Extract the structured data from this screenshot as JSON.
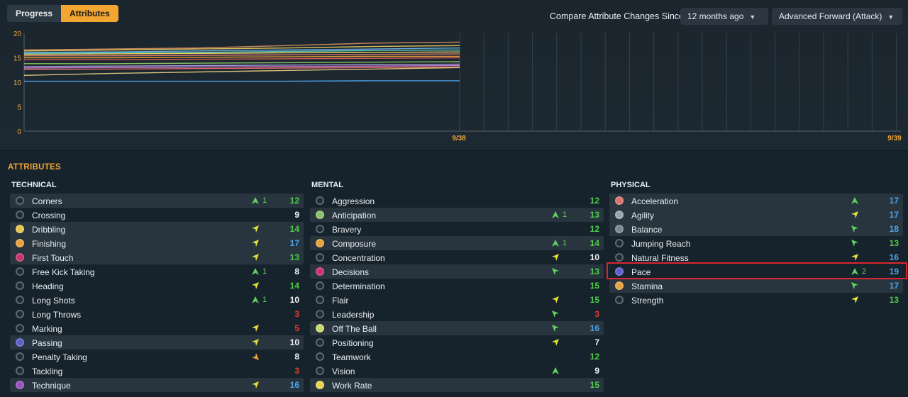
{
  "tabs": [
    {
      "label": "Progress",
      "active": false
    },
    {
      "label": "Attributes",
      "active": true
    }
  ],
  "compare": {
    "label": "Compare Attribute Changes Since",
    "period": "12 months ago",
    "role": "Advanced Forward (Attack)"
  },
  "chart_data": {
    "type": "line",
    "ylim": [
      0,
      20
    ],
    "y_ticks": [
      "20",
      "15",
      "10",
      "5",
      "0"
    ],
    "x_labels": [
      "9/38",
      "9/39"
    ],
    "grid": "vertical lines",
    "series": [
      {
        "color": "#c8865a",
        "values": [
          16.6,
          16.8,
          17.0,
          17.5,
          18.0,
          18.2
        ]
      },
      {
        "color": "#d7c060",
        "values": [
          16.4,
          16.6,
          16.8,
          17.0,
          17.3,
          17.5
        ]
      },
      {
        "color": "#6aa7d8",
        "values": [
          16.1,
          16.2,
          16.4,
          16.6,
          16.8,
          17.0
        ]
      },
      {
        "color": "#5cc7c7",
        "values": [
          15.9,
          16.0,
          16.1,
          16.3,
          16.5,
          16.6
        ]
      },
      {
        "color": "#e6d55e",
        "values": [
          15.7,
          15.8,
          15.9,
          16.0,
          16.1,
          16.2
        ]
      },
      {
        "color": "#d87a7a",
        "values": [
          15.4,
          15.4,
          15.5,
          15.6,
          15.7,
          15.8
        ]
      },
      {
        "color": "#e2a23a",
        "values": [
          15.0,
          15.0,
          15.1,
          15.2,
          15.3,
          15.3
        ]
      },
      {
        "color": "#d65a5a",
        "values": [
          14.6,
          14.6,
          14.7,
          14.8,
          14.9,
          15.0
        ]
      },
      {
        "color": "#8bbf63",
        "values": [
          13.8,
          13.8,
          13.9,
          14.0,
          14.1,
          14.2
        ]
      },
      {
        "color": "#a59bd8",
        "values": [
          13.2,
          13.3,
          13.4,
          13.5,
          13.6,
          13.7
        ]
      },
      {
        "color": "#c77dcf",
        "values": [
          12.9,
          13.0,
          13.1,
          13.2,
          13.3,
          13.4
        ]
      },
      {
        "color": "#e26a6a",
        "values": [
          12.6,
          12.7,
          12.8,
          12.9,
          13.0,
          13.1
        ]
      },
      {
        "color": "#d8c07a",
        "values": [
          11.4,
          11.8,
          12.1,
          12.4,
          12.7,
          13.0
        ]
      },
      {
        "color": "#4da3ea",
        "values": [
          10.2,
          10.2,
          10.2,
          10.2,
          10.3,
          10.3
        ]
      }
    ]
  },
  "attributes_title": "ATTRIBUTES",
  "columns": [
    {
      "title": "TECHNICAL",
      "rows": [
        {
          "name": "Corners",
          "trend": "up",
          "change": "1",
          "value": "12",
          "vcolor": "green",
          "dot": "",
          "shaded": true
        },
        {
          "name": "Crossing",
          "trend": "",
          "change": "",
          "value": "9",
          "vcolor": "white",
          "dot": "",
          "shaded": false
        },
        {
          "name": "Dribbling",
          "trend": "up-right",
          "change": "",
          "value": "14",
          "vcolor": "green",
          "dot": "#e8c44b",
          "shaded": true
        },
        {
          "name": "Finishing",
          "trend": "up-right",
          "change": "",
          "value": "17",
          "vcolor": "blue",
          "dot": "#e8a23a",
          "shaded": true
        },
        {
          "name": "First Touch",
          "trend": "up-right",
          "change": "",
          "value": "13",
          "vcolor": "green",
          "dot": "#c9326a",
          "shaded": true
        },
        {
          "name": "Free Kick Taking",
          "trend": "up",
          "change": "1",
          "value": "8",
          "vcolor": "white",
          "dot": "",
          "shaded": false
        },
        {
          "name": "Heading",
          "trend": "up-right",
          "change": "",
          "value": "14",
          "vcolor": "green",
          "dot": "",
          "shaded": false
        },
        {
          "name": "Long Shots",
          "trend": "up",
          "change": "1",
          "value": "10",
          "vcolor": "white",
          "dot": "",
          "shaded": false
        },
        {
          "name": "Long Throws",
          "trend": "",
          "change": "",
          "value": "3",
          "vcolor": "red",
          "dot": "",
          "shaded": false
        },
        {
          "name": "Marking",
          "trend": "up-right",
          "change": "",
          "value": "5",
          "vcolor": "red",
          "dot": "",
          "shaded": false
        },
        {
          "name": "Passing",
          "trend": "up-right",
          "change": "",
          "value": "10",
          "vcolor": "white",
          "dot": "#5a5fc9",
          "shaded": true
        },
        {
          "name": "Penalty Taking",
          "trend": "down-right",
          "change": "",
          "value": "8",
          "vcolor": "white",
          "dot": "",
          "shaded": false
        },
        {
          "name": "Tackling",
          "trend": "",
          "change": "",
          "value": "3",
          "vcolor": "red",
          "dot": "",
          "shaded": false
        },
        {
          "name": "Technique",
          "trend": "up-right",
          "change": "",
          "value": "16",
          "vcolor": "blue",
          "dot": "#9b4fc2",
          "shaded": true
        }
      ]
    },
    {
      "title": "MENTAL",
      "rows": [
        {
          "name": "Aggression",
          "trend": "",
          "change": "",
          "value": "12",
          "vcolor": "green",
          "dot": "",
          "shaded": false
        },
        {
          "name": "Anticipation",
          "trend": "up",
          "change": "1",
          "value": "13",
          "vcolor": "green",
          "dot": "#8cc06a",
          "shaded": true
        },
        {
          "name": "Bravery",
          "trend": "",
          "change": "",
          "value": "12",
          "vcolor": "green",
          "dot": "",
          "shaded": false
        },
        {
          "name": "Composure",
          "trend": "up",
          "change": "1",
          "value": "14",
          "vcolor": "green",
          "dot": "#e8a23a",
          "shaded": true
        },
        {
          "name": "Concentration",
          "trend": "up-right",
          "change": "",
          "value": "10",
          "vcolor": "white",
          "dot": "",
          "shaded": false
        },
        {
          "name": "Decisions",
          "trend": "up-left",
          "change": "",
          "value": "13",
          "vcolor": "green",
          "dot": "#c9326a",
          "shaded": true
        },
        {
          "name": "Determination",
          "trend": "",
          "change": "",
          "value": "15",
          "vcolor": "green",
          "dot": "",
          "shaded": false
        },
        {
          "name": "Flair",
          "trend": "up-right",
          "change": "",
          "value": "15",
          "vcolor": "green",
          "dot": "",
          "shaded": false
        },
        {
          "name": "Leadership",
          "trend": "up-left",
          "change": "",
          "value": "3",
          "vcolor": "red",
          "dot": "",
          "shaded": false
        },
        {
          "name": "Off The Ball",
          "trend": "up-left",
          "change": "",
          "value": "16",
          "vcolor": "blue",
          "dot": "#c8d86a",
          "shaded": true
        },
        {
          "name": "Positioning",
          "trend": "up-right",
          "change": "",
          "value": "7",
          "vcolor": "white",
          "dot": "",
          "shaded": false
        },
        {
          "name": "Teamwork",
          "trend": "",
          "change": "",
          "value": "12",
          "vcolor": "green",
          "dot": "",
          "shaded": false
        },
        {
          "name": "Vision",
          "trend": "up",
          "change": "",
          "value": "9",
          "vcolor": "white",
          "dot": "",
          "shaded": false
        },
        {
          "name": "Work Rate",
          "trend": "",
          "change": "",
          "value": "15",
          "vcolor": "green",
          "dot": "#e8d44b",
          "shaded": true
        }
      ]
    },
    {
      "title": "PHYSICAL",
      "rows": [
        {
          "name": "Acceleration",
          "trend": "up",
          "change": "",
          "value": "17",
          "vcolor": "blue",
          "dot": "#d8746a",
          "shaded": true
        },
        {
          "name": "Agility",
          "trend": "up-right",
          "change": "",
          "value": "17",
          "vcolor": "blue",
          "dot": "#9aa3ab",
          "shaded": true
        },
        {
          "name": "Balance",
          "trend": "up-left",
          "change": "",
          "value": "18",
          "vcolor": "blue",
          "dot": "#7a8690",
          "shaded": true
        },
        {
          "name": "Jumping Reach",
          "trend": "up-left",
          "change": "",
          "value": "13",
          "vcolor": "green",
          "dot": "",
          "shaded": false
        },
        {
          "name": "Natural Fitness",
          "trend": "up-right",
          "change": "",
          "value": "16",
          "vcolor": "blue",
          "dot": "",
          "shaded": false
        },
        {
          "name": "Pace",
          "trend": "up",
          "change": "2",
          "value": "19",
          "vcolor": "blue",
          "dot": "#5a5fc9",
          "shaded": false
        },
        {
          "name": "Stamina",
          "trend": "up-left",
          "change": "",
          "value": "17",
          "vcolor": "blue",
          "dot": "#e8a23a",
          "shaded": true
        },
        {
          "name": "Strength",
          "trend": "up-right",
          "change": "",
          "value": "13",
          "vcolor": "green",
          "dot": "",
          "shaded": false
        }
      ]
    }
  ],
  "colors": {
    "accent": "#f2a631",
    "trend_up": "#5fd35f",
    "trend_side": "#e6e23a",
    "trend_down": "#f0a636"
  }
}
